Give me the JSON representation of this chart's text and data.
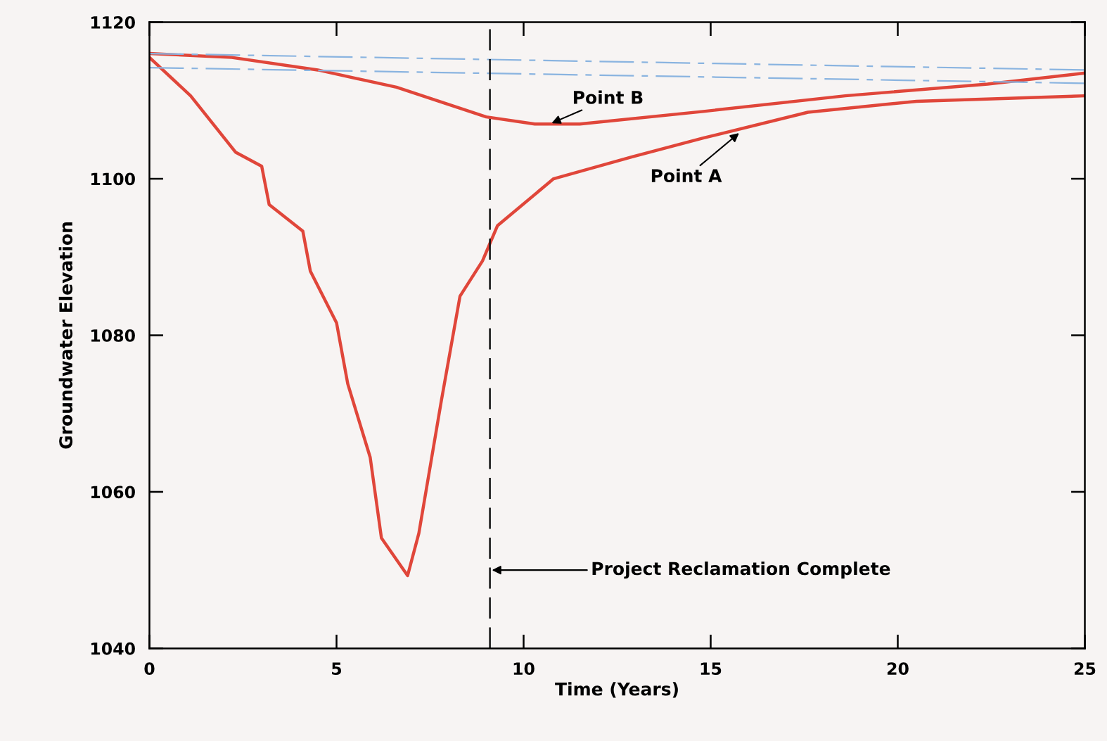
{
  "chart_data": {
    "type": "line",
    "xlabel": "Time (Years)",
    "ylabel": "Groundwater Elevation",
    "xlim": [
      0,
      25
    ],
    "ylim": [
      1040,
      1120
    ],
    "xticks": [
      0,
      5,
      10,
      15,
      20,
      25
    ],
    "yticks": [
      1040,
      1060,
      1080,
      1100,
      1120
    ],
    "grid": false,
    "marker": "none",
    "series": [
      {
        "color": "#e0463a",
        "line_style": "solid",
        "x": [
          0,
          1.1,
          2.3,
          3.0,
          3.2,
          4.1,
          4.3,
          5.0,
          5.3,
          5.9,
          6.2,
          6.9,
          7.2,
          7.8,
          8.3,
          8.9,
          9.3,
          10.8,
          12.9,
          14.8,
          17.6,
          20.5,
          25
        ],
        "values": [
          1115.5,
          1110.6,
          1103.4,
          1101.6,
          1096.7,
          1093.3,
          1088.2,
          1081.6,
          1073.8,
          1064.4,
          1054.1,
          1049.3,
          1054.7,
          1071.6,
          1085.0,
          1089.5,
          1094.0,
          1100.0,
          1102.8,
          1105.2,
          1108.5,
          1109.9,
          1110.6
        ]
      },
      {
        "color": "#e0463a",
        "line_style": "solid",
        "x": [
          0,
          2.2,
          4.5,
          6.6,
          9.0,
          10.3,
          11.5,
          14.8,
          18.6,
          22.4,
          25
        ],
        "values": [
          1116.0,
          1115.5,
          1113.9,
          1111.7,
          1107.9,
          1107.0,
          1107.0,
          1108.6,
          1110.6,
          1112.1,
          1113.5
        ]
      },
      {
        "color": "#8ab4e0",
        "line_style": "dashed",
        "x": [
          0,
          25
        ],
        "values": [
          1116.0,
          1113.9
        ]
      },
      {
        "color": "#8ab4e0",
        "line_style": "dashed",
        "x": [
          0,
          25
        ],
        "values": [
          1114.2,
          1112.2
        ]
      }
    ],
    "ref_lines": [
      {
        "axis": "x",
        "value": 9.1,
        "label": "Project Reclamation Complete",
        "color": "#111111",
        "line_style": "dashed"
      }
    ],
    "annotations": [
      {
        "text": "Point B",
        "x": 10.7,
        "y": 1107.0
      },
      {
        "text": "Point A",
        "x": 15.8,
        "y": 1106.0
      }
    ]
  }
}
